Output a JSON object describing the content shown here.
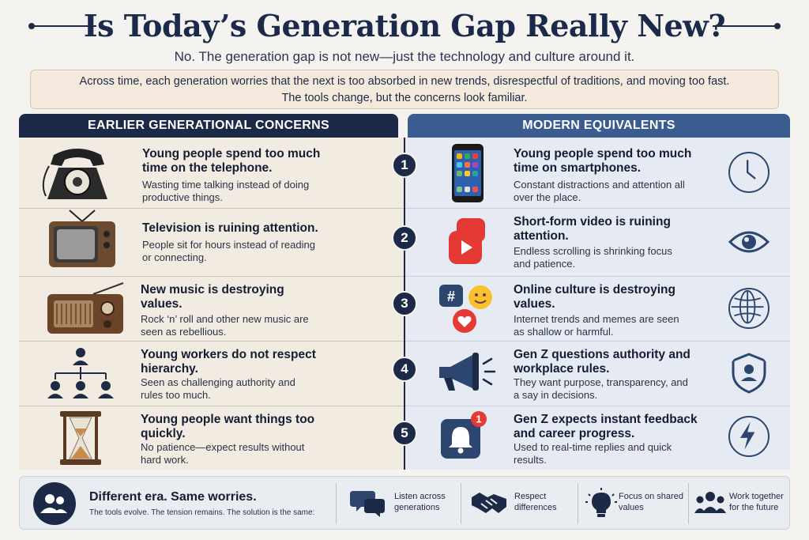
{
  "header": {
    "title": "Is Today’s Generation Gap Really New?",
    "subtitle": "No. The generation gap is not new—just the technology and culture around it.",
    "intro_line1": "Across time, each generation worries that the next is too absorbed in new trends, disrespectful of traditions, and moving too fast.",
    "intro_line2": "The tools change, but the concerns look familiar."
  },
  "columns": {
    "left_heading": "EARLIER GENERATIONAL CONCERNS",
    "right_heading": "MODERN EQUIVALENTS"
  },
  "rows": [
    {
      "number": "1",
      "left_icon": "telephone-icon",
      "left_title": "Young people spend too much time on the telephone.",
      "left_desc": "Wasting time talking instead of doing productive things.",
      "right_icon": "smartphone-icon",
      "right_title": "Young people spend too much time on smartphones.",
      "right_desc": "Constant distractions and attention all over the place.",
      "side_icon": "clock-icon"
    },
    {
      "number": "2",
      "left_icon": "television-icon",
      "left_title": "Television is ruining attention.",
      "left_desc": "People sit for hours instead of reading or connecting.",
      "right_icon": "short-video-icon",
      "right_title": "Short-form video is ruining attention.",
      "right_desc": "Endless scrolling is shrinking focus and patience.",
      "side_icon": "eye-icon"
    },
    {
      "number": "3",
      "left_icon": "radio-icon",
      "left_title": "New music is destroying values.",
      "left_desc": "Rock ‘n’ roll and other new music are seen as rebellious.",
      "right_icon": "social-media-icon",
      "right_title": "Online culture is destroying values.",
      "right_desc": "Internet trends and memes are seen as shallow or harmful.",
      "side_icon": "globe-icon"
    },
    {
      "number": "4",
      "left_icon": "hierarchy-icon",
      "left_title": "Young workers do not respect hierarchy.",
      "left_desc": "Seen as challenging authority and rules too much.",
      "right_icon": "megaphone-icon",
      "right_title": "Gen Z questions authority and workplace rules.",
      "right_desc": "They want purpose, transparency, and a say in decisions.",
      "side_icon": "shield-user-icon"
    },
    {
      "number": "5",
      "left_icon": "hourglass-icon",
      "left_title": "Young people want things too quickly.",
      "left_desc": "No patience—expect results without hard work.",
      "right_icon": "notification-bell-icon",
      "right_title": "Gen Z expects instant feedback and career progress.",
      "right_desc": "Used to real-time replies and quick results.",
      "side_icon": "lightning-icon",
      "notification_count": "1"
    }
  ],
  "footer": {
    "title": "Different  era. Same worries.",
    "subtitle": "The tools evolve. The tension remains. The solution is the same:",
    "items": [
      {
        "icon": "speech-bubbles-icon",
        "label_line1": "Listen across",
        "label_line2": "generations"
      },
      {
        "icon": "handshake-icon",
        "label_line1": "Respect",
        "label_line2": "differences"
      },
      {
        "icon": "lightbulb-icon",
        "label_line1": "Focus on shared",
        "label_line2": "values"
      },
      {
        "icon": "team-icon",
        "label_line1": "Work together",
        "label_line2": "for the future"
      }
    ]
  },
  "colors": {
    "navy": "#1c2a48",
    "blue": "#3b5c8f",
    "beige": "#f2ebe1",
    "light_blue": "#e6ebf3",
    "red": "#e53935"
  }
}
